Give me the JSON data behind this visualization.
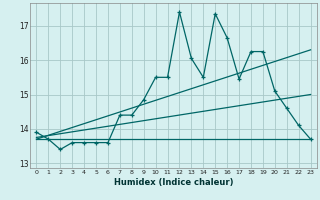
{
  "xlabel": "Humidex (Indice chaleur)",
  "background_color": "#d6f0f0",
  "grid_color": "#a8c8c8",
  "line_color": "#006666",
  "xlim": [
    -0.5,
    23.5
  ],
  "ylim": [
    12.85,
    17.65
  ],
  "yticks": [
    13,
    14,
    15,
    16,
    17
  ],
  "xticks": [
    0,
    1,
    2,
    3,
    4,
    5,
    6,
    7,
    8,
    9,
    10,
    11,
    12,
    13,
    14,
    15,
    16,
    17,
    18,
    19,
    20,
    21,
    22,
    23
  ],
  "main_x": [
    0,
    1,
    2,
    3,
    4,
    5,
    6,
    7,
    8,
    9,
    10,
    11,
    12,
    13,
    14,
    15,
    16,
    17,
    18,
    19,
    20,
    21,
    22,
    23
  ],
  "main_y": [
    13.9,
    13.7,
    13.4,
    13.6,
    13.6,
    13.6,
    13.6,
    14.4,
    14.4,
    14.85,
    15.5,
    15.5,
    17.4,
    16.05,
    15.5,
    17.35,
    16.65,
    15.45,
    16.25,
    16.25,
    15.1,
    14.6,
    14.1,
    13.7
  ],
  "line1_x": [
    0,
    23
  ],
  "line1_y": [
    13.7,
    13.7
  ],
  "line2_x": [
    0,
    23
  ],
  "line2_y": [
    13.75,
    15.0
  ],
  "line3_x": [
    0,
    23
  ],
  "line3_y": [
    13.7,
    16.3
  ]
}
